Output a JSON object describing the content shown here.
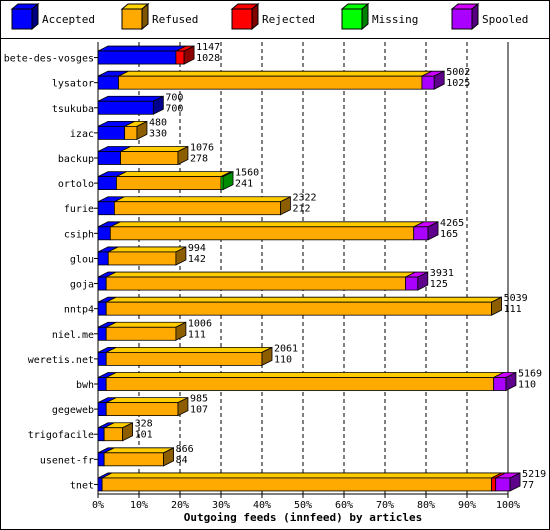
{
  "chart_data": {
    "type": "bar",
    "orientation": "horizontal",
    "stacked": true,
    "three_d": true,
    "title": "Outgoing feeds (innfeed) by articles",
    "x_tick_labels": [
      "0%",
      "10%",
      "20%",
      "30%",
      "40%",
      "50%",
      "60%",
      "70%",
      "80%",
      "90%",
      "100%"
    ],
    "xlim": [
      0,
      100
    ],
    "grid": "vertical dashed",
    "legend_position": "top",
    "series": [
      {
        "name": "Accepted",
        "color": "#0000ff"
      },
      {
        "name": "Refused",
        "color": "#ffaa00"
      },
      {
        "name": "Rejected",
        "color": "#ff0000"
      },
      {
        "name": "Missing",
        "color": "#00ff00"
      },
      {
        "name": "Spooled",
        "color": "#aa00ff"
      }
    ],
    "categories": [
      "bete-des-vosges",
      "lysator",
      "tsukuba",
      "izac",
      "backup",
      "ortolo",
      "furie",
      "csiph",
      "glou",
      "goja",
      "nntp4",
      "niel.me",
      "weretis.net",
      "bwh",
      "gegeweb",
      "trigofacile",
      "usenet-fr",
      "tnet"
    ],
    "rows": [
      {
        "label": "bete-des-vosges",
        "total": "1147",
        "accepted": "1028",
        "segments": [
          19.0,
          0,
          2.0,
          0,
          0
        ]
      },
      {
        "label": "lysator",
        "total": "5002",
        "accepted": "1025",
        "segments": [
          5.0,
          74.0,
          0,
          0,
          3.0
        ]
      },
      {
        "label": "tsukuba",
        "total": "700",
        "accepted": "700",
        "segments": [
          13.5,
          0,
          0,
          0,
          0
        ]
      },
      {
        "label": "izac",
        "total": "480",
        "accepted": "330",
        "segments": [
          6.5,
          3.0,
          0,
          0,
          0
        ]
      },
      {
        "label": "backup",
        "total": "1076",
        "accepted": "278",
        "segments": [
          5.5,
          14.0,
          0,
          0,
          0
        ]
      },
      {
        "label": "ortolo",
        "total": "1560",
        "accepted": "241",
        "segments": [
          4.5,
          25.5,
          0,
          0.5,
          0
        ]
      },
      {
        "label": "furie",
        "total": "2322",
        "accepted": "212",
        "segments": [
          4.0,
          40.5,
          0,
          0,
          0
        ]
      },
      {
        "label": "csiph",
        "total": "4265",
        "accepted": "165",
        "segments": [
          3.0,
          74.0,
          0,
          0,
          3.5
        ]
      },
      {
        "label": "glou",
        "total": "994",
        "accepted": "142",
        "segments": [
          2.5,
          16.5,
          0,
          0,
          0
        ]
      },
      {
        "label": "goja",
        "total": "3931",
        "accepted": "125",
        "segments": [
          2.0,
          73.0,
          0,
          0,
          3.0
        ]
      },
      {
        "label": "nntp4",
        "total": "5039",
        "accepted": "111",
        "segments": [
          2.0,
          94.0,
          0,
          0,
          0
        ]
      },
      {
        "label": "niel.me",
        "total": "1006",
        "accepted": "111",
        "segments": [
          2.0,
          17.0,
          0,
          0,
          0
        ]
      },
      {
        "label": "weretis.net",
        "total": "2061",
        "accepted": "110",
        "segments": [
          2.0,
          38.0,
          0,
          0,
          0
        ]
      },
      {
        "label": "bwh",
        "total": "5169",
        "accepted": "110",
        "segments": [
          2.0,
          94.5,
          0,
          0,
          3.0
        ]
      },
      {
        "label": "gegeweb",
        "total": "985",
        "accepted": "107",
        "segments": [
          2.0,
          17.5,
          0,
          0,
          0
        ]
      },
      {
        "label": "trigofacile",
        "total": "328",
        "accepted": "101",
        "segments": [
          1.5,
          4.5,
          0,
          0,
          0
        ]
      },
      {
        "label": "usenet-fr",
        "total": "866",
        "accepted": "84",
        "segments": [
          1.5,
          14.5,
          0,
          0,
          0
        ]
      },
      {
        "label": "tnet",
        "total": "5219",
        "accepted": "77",
        "segments": [
          1.0,
          95.0,
          1.0,
          0,
          3.5
        ]
      }
    ]
  }
}
